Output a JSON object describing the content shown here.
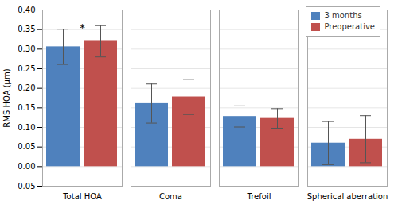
{
  "chart_data": {
    "type": "bar",
    "categories": [
      "Total HOA",
      "Coma",
      "Trefoil",
      "Spherical aberration"
    ],
    "series": [
      {
        "name": "3 months",
        "color": "#4f81bd",
        "values": [
          0.306,
          0.161,
          0.128,
          0.06
        ],
        "errors": [
          0.045,
          0.05,
          0.027,
          0.055
        ]
      },
      {
        "name": "Preoperative",
        "color": "#c0504d",
        "values": [
          0.32,
          0.178,
          0.123,
          0.07
        ],
        "errors": [
          0.04,
          0.045,
          0.025,
          0.06
        ]
      }
    ],
    "ylabel": "RMS HOA (μm)",
    "ylim": [
      -0.05,
      0.4
    ],
    "yticks": [
      -0.05,
      {
        "value": 0.0,
        "label": "0.00"
      },
      0.05,
      {
        "value": 0.1,
        "label": "0.10"
      },
      0.15,
      {
        "value": 0.2,
        "label": "0.20"
      },
      0.25,
      {
        "value": 0.3,
        "label": "0.30"
      },
      0.35,
      {
        "value": 0.4,
        "label": "0.40"
      }
    ],
    "grid": true,
    "legend": "upper right",
    "annotations": [
      {
        "text": "*",
        "category": "Total HOA",
        "y": 0.345
      }
    ]
  }
}
